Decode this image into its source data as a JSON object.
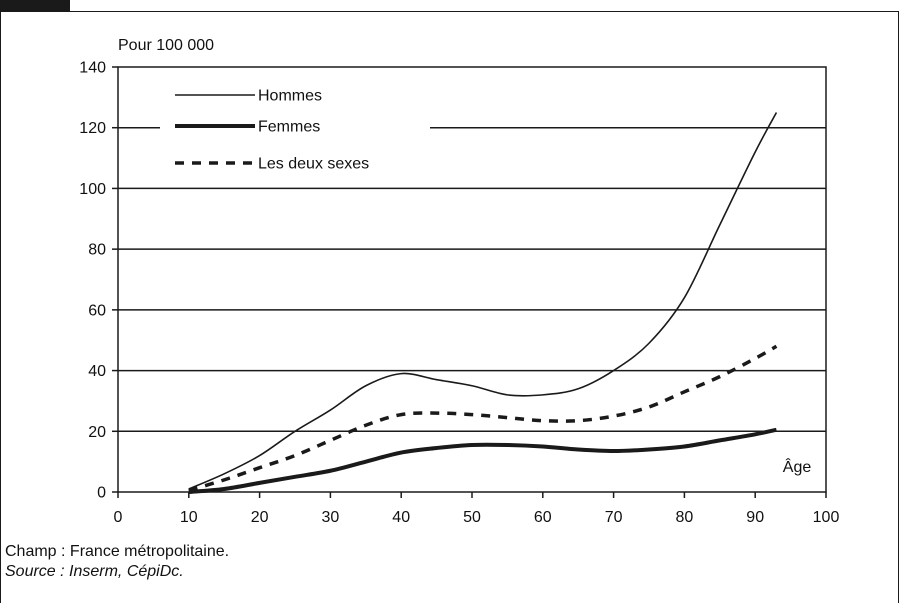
{
  "chart_data": {
    "type": "line",
    "ylabel": "Pour 100 000",
    "xlabel": "Âge",
    "xlim": [
      0,
      100
    ],
    "ylim": [
      0,
      140
    ],
    "x_ticks": [
      "0",
      "10",
      "20",
      "30",
      "40",
      "50",
      "60",
      "70",
      "80",
      "90",
      "100"
    ],
    "y_ticks": [
      "0",
      "20",
      "40",
      "60",
      "80",
      "100",
      "120",
      "140"
    ],
    "grid": "horizontal",
    "legend_position": "top-left",
    "series": [
      {
        "name": "Hommes",
        "style": "thin-solid",
        "x": [
          10,
          15,
          20,
          25,
          30,
          35,
          40,
          45,
          50,
          55,
          60,
          65,
          70,
          75,
          80,
          85,
          90,
          93
        ],
        "y": [
          1,
          6,
          12,
          20,
          27,
          35,
          39,
          37,
          35,
          32,
          32,
          34,
          40,
          49,
          64,
          88,
          112,
          125
        ]
      },
      {
        "name": "Femmes",
        "style": "thick-solid",
        "x": [
          10,
          15,
          20,
          25,
          30,
          35,
          40,
          45,
          50,
          55,
          60,
          65,
          70,
          75,
          80,
          85,
          90,
          93
        ],
        "y": [
          0,
          1,
          3,
          5,
          7,
          10,
          13,
          14.5,
          15.5,
          15.5,
          15,
          14,
          13.5,
          14,
          15,
          17,
          19,
          20.5
        ]
      },
      {
        "name": "Les deux sexes",
        "style": "dashed",
        "x": [
          10,
          15,
          20,
          25,
          30,
          35,
          40,
          45,
          50,
          55,
          60,
          65,
          70,
          75,
          80,
          85,
          90,
          93
        ],
        "y": [
          0.5,
          4,
          8,
          12,
          17,
          22,
          25.5,
          26,
          25.5,
          24.5,
          23.5,
          23.5,
          25,
          28,
          33,
          38,
          44,
          48
        ]
      }
    ]
  },
  "footer": {
    "champ": "Champ : France métropolitaine.",
    "source": "Source : Inserm, CépiDc."
  },
  "colors": {
    "line": "#1a1a1a",
    "grid": "#1a1a1a",
    "badge": "#1a1a1a"
  }
}
